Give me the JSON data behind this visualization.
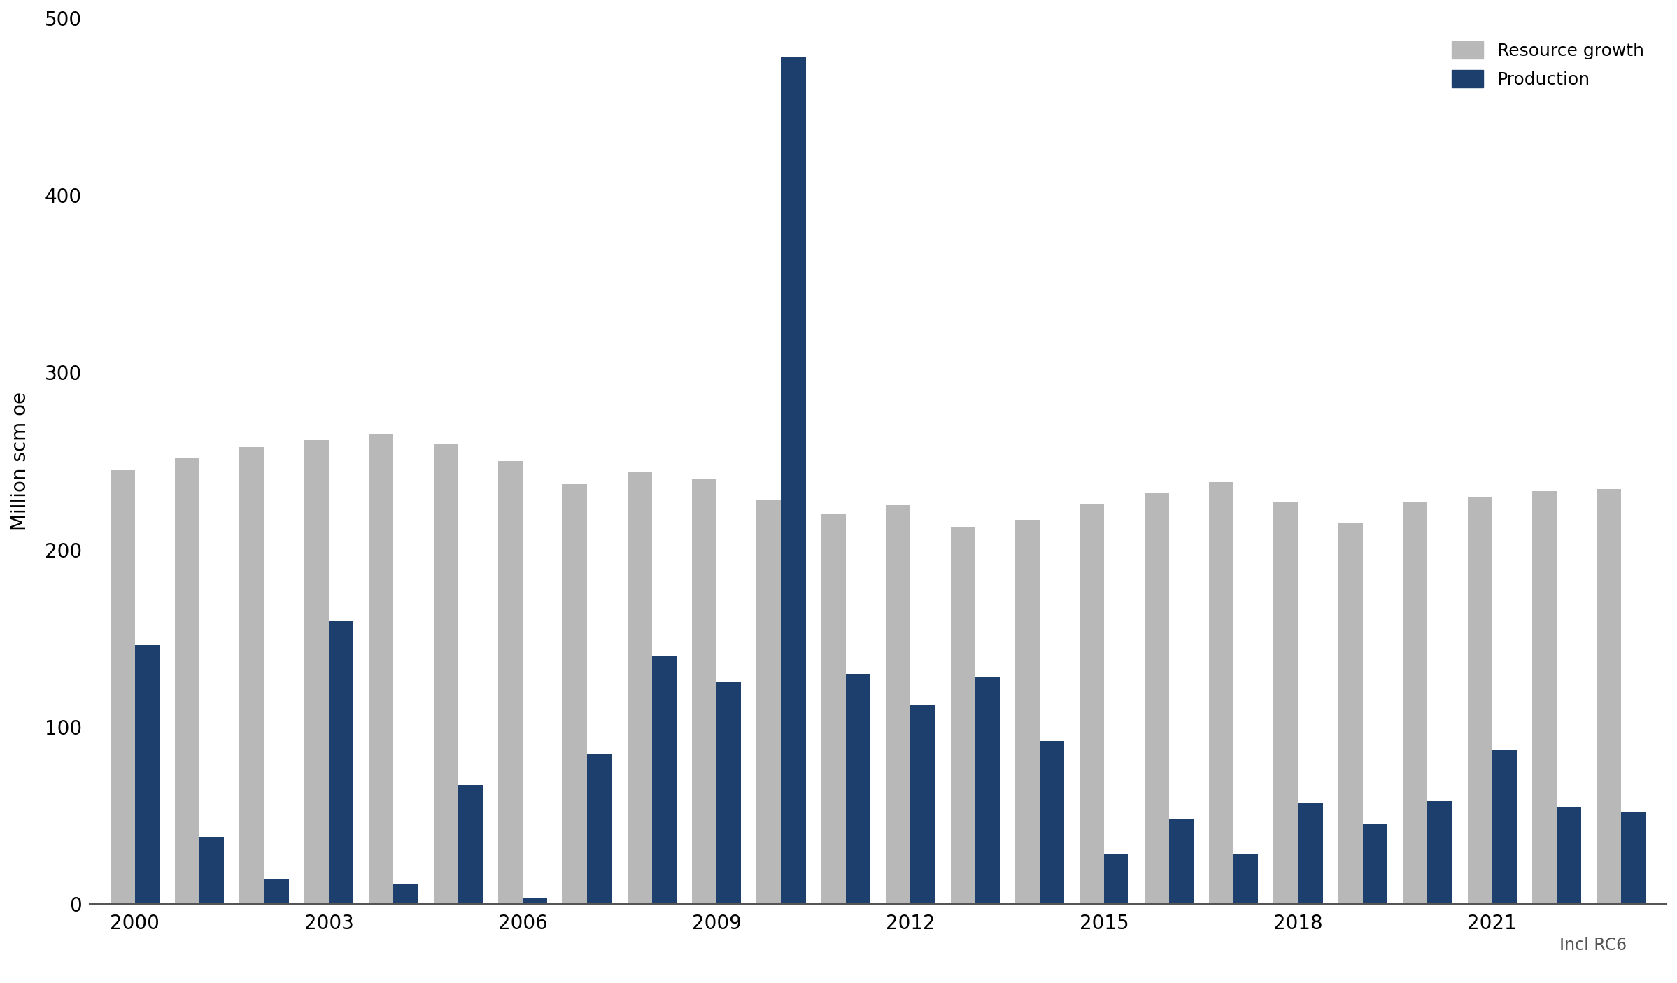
{
  "years": [
    2000,
    2001,
    2002,
    2003,
    2004,
    2005,
    2006,
    2007,
    2008,
    2009,
    2010,
    2011,
    2012,
    2013,
    2014,
    2015,
    2016,
    2017,
    2018,
    2019,
    2020,
    2021,
    2022,
    2023
  ],
  "resource_growth": [
    245,
    252,
    258,
    262,
    265,
    260,
    250,
    237,
    244,
    240,
    228,
    220,
    225,
    213,
    217,
    226,
    232,
    238,
    227,
    215,
    227,
    230,
    233,
    234
  ],
  "production": [
    146,
    38,
    14,
    160,
    11,
    67,
    3,
    85,
    140,
    125,
    478,
    130,
    112,
    128,
    92,
    28,
    48,
    28,
    57,
    45,
    58,
    87,
    55,
    52
  ],
  "resource_growth_color": "#b8b8b8",
  "production_color": "#1c3f6e",
  "ylabel": "Million scm oe",
  "ylim": [
    0,
    500
  ],
  "yticks": [
    0,
    100,
    200,
    300,
    400,
    500
  ],
  "background_color": "#ffffff",
  "legend_resource_label": "Resource growth",
  "legend_production_label": "Production",
  "note": "Incl RC6",
  "bar_width": 0.38
}
